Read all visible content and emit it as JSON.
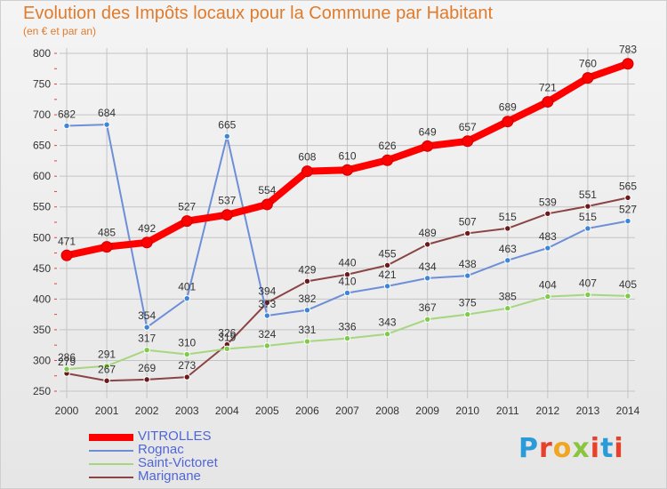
{
  "title": "Evolution des Impôts locaux pour la Commune par Habitant",
  "subtitle": "(en € et par an)",
  "logo": {
    "text": "Proxiti",
    "letter_colors": [
      "#2a9bd8",
      "#e8402a",
      "#f2a51e",
      "#8bc53f",
      "#e8402a",
      "#2a9bd8",
      "#e8402a"
    ]
  },
  "colors": {
    "title": "#e07b2c",
    "axis_text": "#333333",
    "grid": "#c4c4c4",
    "tick_marks": "#e04040",
    "legend_text": "#5066d6"
  },
  "chart_data": {
    "type": "line",
    "x": [
      "2000",
      "2001",
      "2002",
      "2003",
      "2004",
      "2005",
      "2006",
      "2007",
      "2008",
      "2009",
      "2010",
      "2011",
      "2012",
      "2013",
      "2014"
    ],
    "ylim": [
      250,
      800
    ],
    "yticks": [
      250,
      300,
      350,
      400,
      450,
      500,
      550,
      600,
      650,
      700,
      750,
      800
    ],
    "series": [
      {
        "name": "VITROLLES",
        "color": "#ff0000",
        "point_fill": "#ff0000",
        "values": [
          471,
          485,
          492,
          527,
          537,
          554,
          608,
          610,
          626,
          649,
          657,
          689,
          721,
          760,
          783
        ],
        "labels": [
          "471",
          "485",
          "492",
          "527",
          "537",
          "554",
          "608",
          "610",
          "626",
          "649",
          "657",
          "689",
          "721",
          "760",
          "783"
        ]
      },
      {
        "name": "Rognac",
        "color": "#6e8fd8",
        "point_fill": "#3d85d6",
        "values": [
          682,
          684,
          354,
          401,
          665,
          373,
          382,
          410,
          421,
          434,
          438,
          463,
          483,
          515,
          527
        ],
        "labels": [
          "682",
          "684",
          "354",
          "401",
          "665",
          "373",
          "382",
          "410",
          "421",
          "434",
          "438",
          "463",
          "483",
          "515",
          "527"
        ]
      },
      {
        "name": "Saint-Victoret",
        "color": "#a6d77f",
        "point_fill": "#7ecb4a",
        "values": [
          286,
          291,
          317,
          310,
          319,
          324,
          331,
          336,
          343,
          367,
          375,
          385,
          404,
          407,
          405
        ],
        "labels": [
          "286",
          "291",
          "317",
          "310",
          "319",
          "324",
          "331",
          "336",
          "343",
          "367",
          "375",
          "385",
          "404",
          "407",
          "405"
        ]
      },
      {
        "name": "Marignane",
        "color": "#8a4444",
        "point_fill": "#6a1a1a",
        "values": [
          279,
          267,
          269,
          273,
          326,
          394,
          429,
          440,
          455,
          489,
          507,
          515,
          539,
          551,
          565
        ],
        "labels": [
          "279",
          "267",
          "269",
          "273",
          "326",
          "394",
          "429",
          "440",
          "455",
          "489",
          "507",
          "515",
          "539",
          "551",
          "565"
        ]
      }
    ]
  }
}
